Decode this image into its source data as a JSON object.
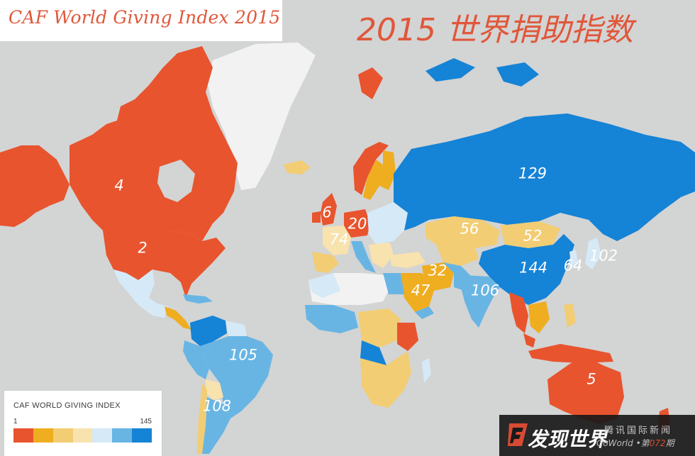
{
  "title_en": "CAF World Giving Index 2015",
  "title_zh": "2015 世界捐助指数",
  "legend": {
    "title": "CAF WORLD GIVING INDEX",
    "min": "1",
    "max": "145",
    "colors": [
      "#e8542e",
      "#efad20",
      "#f2cd74",
      "#f8e2ae",
      "#d6e9f6",
      "#68b5e4",
      "#1583d6"
    ]
  },
  "colors": {
    "ocean": "#d3d4d4",
    "rank_top": "#e8542e",
    "rank_high": "#efad20",
    "rank_mid_high": "#f2cd74",
    "rank_mid": "#f8e2ae",
    "rank_mid_low": "#d6e9f6",
    "rank_low": "#68b5e4",
    "rank_bottom": "#1583d6",
    "no_data": "#f2f2f2"
  },
  "country_ranks": [
    {
      "country": "Canada",
      "rank": "4"
    },
    {
      "country": "United States",
      "rank": "2"
    },
    {
      "country": "United Kingdom",
      "rank": "6"
    },
    {
      "country": "Germany",
      "rank": "20"
    },
    {
      "country": "Spain",
      "rank": "74"
    },
    {
      "country": "Kazakhstan",
      "rank": "56"
    },
    {
      "country": "Mongolia",
      "rank": "52"
    },
    {
      "country": "Russia",
      "rank": "129"
    },
    {
      "country": "China",
      "rank": "144"
    },
    {
      "country": "South Korea",
      "rank": "64"
    },
    {
      "country": "Japan",
      "rank": "102"
    },
    {
      "country": "Iran",
      "rank": "32"
    },
    {
      "country": "Saudi Arabia",
      "rank": "47"
    },
    {
      "country": "India",
      "rank": "106"
    },
    {
      "country": "Brazil",
      "rank": "105"
    },
    {
      "country": "Argentina",
      "rank": "108"
    },
    {
      "country": "Australia",
      "rank": "5"
    }
  ],
  "watermark": {
    "brand_zh": "发现世界",
    "sub_zh": "腾讯国际新闻",
    "sub_en": "GoWorld",
    "issue_prefix": "•第",
    "issue_number": "072",
    "issue_suffix": "期"
  }
}
